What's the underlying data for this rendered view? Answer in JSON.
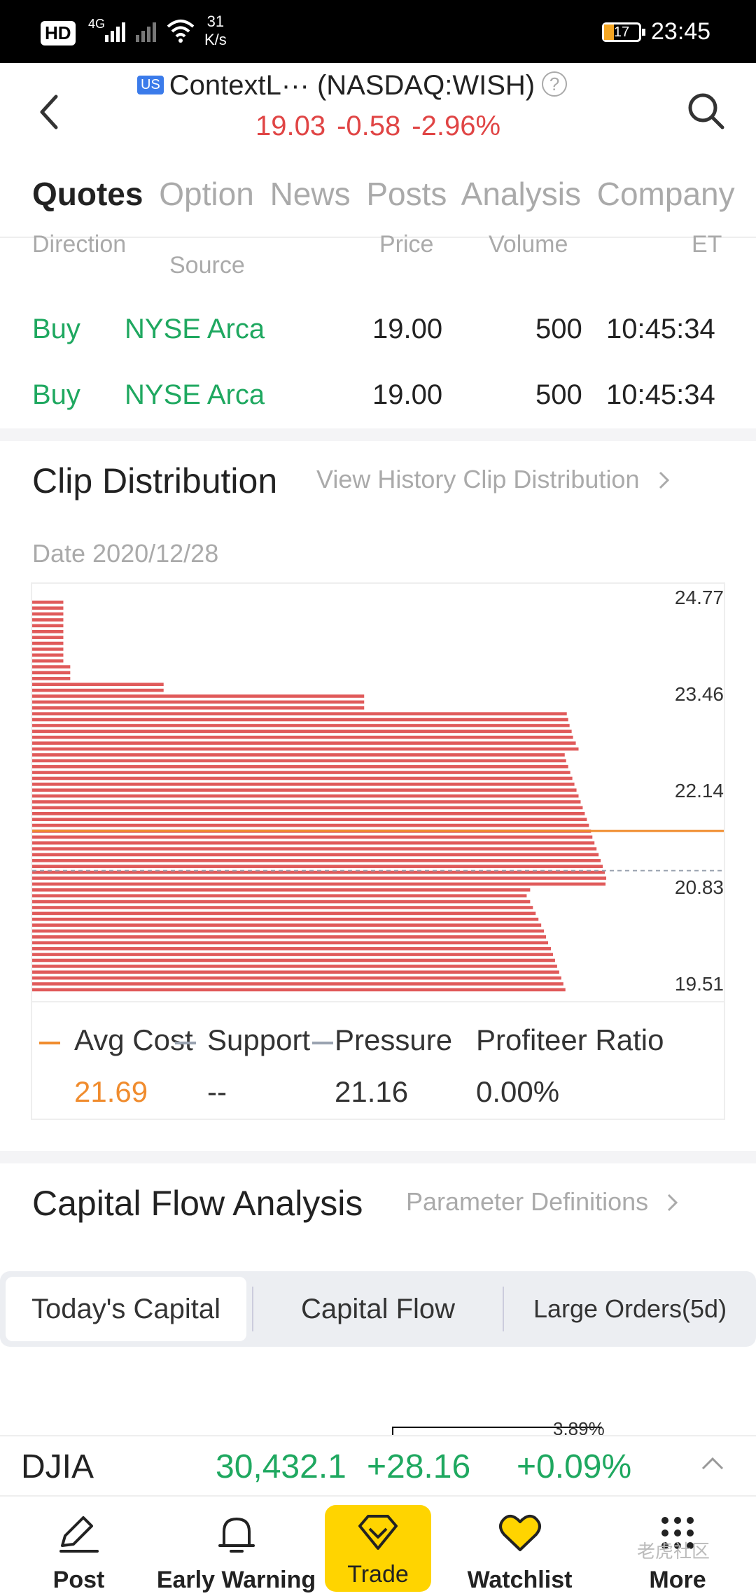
{
  "status_bar": {
    "hd": "HD",
    "network": "4G",
    "speed": "31\nK/s",
    "battery": "17",
    "time": "23:45"
  },
  "header": {
    "market_badge": "US",
    "title": "ContextL···  (NASDAQ:WISH)",
    "price": "19.03",
    "change": "-0.58",
    "change_pct": "-2.96%",
    "quote_color": "#e04545"
  },
  "tabs": [
    {
      "label": "Quotes",
      "active": true
    },
    {
      "label": "Option",
      "active": false
    },
    {
      "label": "News",
      "active": false
    },
    {
      "label": "Posts",
      "active": false
    },
    {
      "label": "Analysis",
      "active": false
    },
    {
      "label": "Company",
      "active": false
    }
  ],
  "trades": {
    "headers": {
      "direction": "Direction",
      "source": "Source",
      "price": "Price",
      "volume": "Volume",
      "time": "ET"
    },
    "rows": [
      {
        "direction": "Buy",
        "source": "NYSE Arca",
        "price": "19.00",
        "volume": "500",
        "time": "10:45:34"
      },
      {
        "direction": "Buy",
        "source": "NYSE Arca",
        "price": "19.00",
        "volume": "500",
        "time": "10:45:34"
      }
    ]
  },
  "clip": {
    "title": "Clip Distribution",
    "link": "View History Clip Distribution",
    "date_label": "Date 2020/12/28",
    "legend": {
      "avg_cost_label": "Avg Cost",
      "support_label": "Support",
      "pressure_label": "Pressure",
      "profiteer_label": "Profiteer Ratio",
      "avg_cost_value": "21.69",
      "support_value": "--",
      "pressure_value": "21.16",
      "profiteer_value": "0.00%",
      "avg_color": "#f08c2e",
      "support_color": "#9aa3b0"
    }
  },
  "chart_data": {
    "type": "bar",
    "orientation": "horizontal",
    "title": "Clip Distribution",
    "y_ticks": [
      "24.77",
      "23.46",
      "22.14",
      "20.83",
      "19.51"
    ],
    "ylim": [
      19.51,
      24.77
    ],
    "bar_color": "#e05a5a",
    "x_values_relative": [
      4.5,
      4.5,
      4.5,
      4.5,
      4.5,
      4.5,
      4.5,
      4.5,
      4.5,
      4.5,
      4.5,
      5.5,
      5.5,
      5.5,
      19,
      19,
      48,
      48,
      48,
      77.3,
      77.5,
      77.7,
      78.0,
      78.2,
      78.6,
      79.0,
      77.0,
      77.2,
      77.5,
      77.8,
      78.1,
      78.4,
      78.7,
      79.0,
      79.3,
      79.6,
      79.9,
      80.2,
      80.5,
      80.8,
      81.0,
      81.3,
      81.6,
      81.9,
      82.2,
      82.5,
      82.8,
      83.0,
      82.9,
      72.0,
      71.5,
      72.0,
      72.4,
      72.8,
      73.2,
      73.6,
      74.0,
      74.3,
      74.6,
      75.0,
      75.3,
      75.6,
      75.9,
      76.2,
      76.5,
      76.8,
      77.1
    ],
    "avg_cost": 21.69,
    "pressure": 21.16
  },
  "capital": {
    "title": "Capital Flow Analysis",
    "link": "Parameter Definitions",
    "segments": [
      {
        "label": "Today's Capital",
        "active": true
      },
      {
        "label": "Capital Flow",
        "active": false
      },
      {
        "label": "Large Orders(5d)",
        "active": false
      }
    ],
    "peek_value": "3.89%"
  },
  "index_bar": {
    "name": "DJIA",
    "value": "30,432.1",
    "change": "+28.16",
    "change_pct": "+0.09%"
  },
  "bottom_nav": [
    {
      "label": "Post",
      "icon": "pencil-icon"
    },
    {
      "label": "Early Warning",
      "icon": "bell-icon"
    },
    {
      "label": "Trade",
      "icon": "diamond-icon"
    },
    {
      "label": "Watchlist",
      "icon": "heart-icon"
    },
    {
      "label": "More",
      "icon": "grid-icon"
    }
  ],
  "watermark": "老虎社区"
}
